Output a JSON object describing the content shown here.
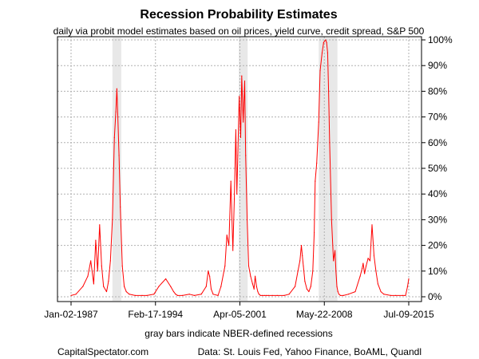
{
  "chart_data": {
    "type": "line",
    "title": "Recession Probability Estimates",
    "subtitle": "daily via probit model estimates based on oil prices, yield curve, credit spread, S&P 500",
    "xlabel": "gray bars indicate NBER-defined recessions",
    "x_tick_labels": [
      "Jan-02-1987",
      "Feb-17-1994",
      "Apr-05-2001",
      "May-22-2008",
      "Jul-09-2015"
    ],
    "x_range": [
      "1987-01-02",
      "2015-07-09"
    ],
    "y_tick_labels": [
      "0%",
      "10%",
      "20%",
      "30%",
      "40%",
      "50%",
      "60%",
      "70%",
      "80%",
      "90%",
      "100%"
    ],
    "ylim": [
      0,
      100
    ],
    "y_axis_side": "right",
    "grid": true,
    "series_color": "#ff0000",
    "recession_color": "#e8e8e8",
    "recessions": [
      {
        "start": "1990-07-01",
        "end": "1991-03-31"
      },
      {
        "start": "2001-03-01",
        "end": "2001-11-30"
      },
      {
        "start": "2007-12-01",
        "end": "2009-06-30"
      }
    ],
    "series": [
      {
        "x": [
          "1987-01-02",
          "1987-06-01",
          "1988-01-01",
          "1988-06-01",
          "1988-09-01",
          "1988-12-01",
          "1989-02-01",
          "1989-04-01",
          "1989-06-01",
          "1989-08-01",
          "1989-10-01",
          "1990-01-01",
          "1990-03-01",
          "1990-05-01",
          "1990-07-01",
          "1990-09-01",
          "1990-10-15",
          "1990-11-15",
          "1990-12-15",
          "1991-01-20",
          "1991-03-01",
          "1991-05-01",
          "1991-07-01",
          "1991-09-01",
          "1991-12-01",
          "1992-06-01",
          "1993-01-01",
          "1993-06-01",
          "1994-01-01",
          "1994-06-01",
          "1995-01-01",
          "1995-06-01",
          "1995-09-01",
          "1995-11-01",
          "1996-01-01",
          "1996-06-01",
          "1997-01-01",
          "1997-06-01",
          "1998-01-01",
          "1998-06-01",
          "1998-08-01",
          "1998-09-15",
          "1998-11-01",
          "1999-01-01",
          "1999-06-01",
          "1999-09-01",
          "2000-01-01",
          "2000-03-01",
          "2000-05-01",
          "2000-07-01",
          "2000-09-01",
          "2000-10-15",
          "2000-12-01",
          "2001-01-01",
          "2001-02-01",
          "2001-03-15",
          "2001-05-01",
          "2001-06-01",
          "2001-07-15",
          "2001-09-01",
          "2001-10-01",
          "2001-11-15",
          "2002-01-01",
          "2002-03-01",
          "2002-05-01",
          "2002-06-15",
          "2002-07-20",
          "2002-09-01",
          "2002-10-10",
          "2002-11-15",
          "2003-01-01",
          "2003-03-01",
          "2003-05-01",
          "2003-07-01",
          "2003-09-01",
          "2004-01-01",
          "2004-06-01",
          "2005-01-01",
          "2005-06-01",
          "2005-12-01",
          "2006-03-01",
          "2006-05-01",
          "2006-06-15",
          "2006-07-15",
          "2006-08-15",
          "2006-10-01",
          "2006-12-01",
          "2007-02-01",
          "2007-04-01",
          "2007-06-01",
          "2007-07-15",
          "2007-08-15",
          "2007-10-01",
          "2007-12-01",
          "2008-01-15",
          "2008-03-15",
          "2008-05-01",
          "2008-07-01",
          "2008-08-01",
          "2008-09-01",
          "2008-10-01",
          "2008-11-01",
          "2009-01-01",
          "2009-03-01",
          "2009-04-15",
          "2009-05-15",
          "2009-06-15",
          "2009-07-15",
          "2009-08-15",
          "2009-10-01",
          "2010-01-01",
          "2010-06-01",
          "2011-01-01",
          "2011-06-01",
          "2011-08-01",
          "2011-09-01",
          "2011-10-15",
          "2011-12-01",
          "2012-02-01",
          "2012-04-01",
          "2012-06-01",
          "2012-08-01",
          "2012-10-01",
          "2012-12-01",
          "2013-03-01",
          "2013-06-01",
          "2014-01-01",
          "2014-06-01",
          "2015-01-01",
          "2015-04-01",
          "2015-06-01",
          "2015-07-09"
        ],
        "values": [
          0.5,
          1,
          4,
          8,
          14,
          5,
          22,
          10,
          28,
          12,
          4,
          2,
          6,
          14,
          30,
          62,
          72,
          81,
          70,
          55,
          35,
          12,
          4,
          2,
          1,
          0.5,
          0.5,
          0.5,
          1,
          4,
          7,
          4,
          2,
          1,
          0.5,
          0.5,
          1,
          0.5,
          1,
          4,
          10,
          8,
          3,
          1,
          0.5,
          4,
          12,
          24,
          20,
          45,
          18,
          38,
          65,
          40,
          55,
          78,
          62,
          86,
          68,
          84,
          55,
          30,
          12,
          8,
          5,
          3,
          8,
          4,
          2,
          1,
          0.5,
          0.5,
          0.5,
          0.5,
          0.5,
          0.5,
          0.5,
          0.5,
          1,
          4,
          10,
          14,
          20,
          16,
          12,
          6,
          3,
          2,
          4,
          10,
          25,
          45,
          52,
          68,
          88,
          95,
          99,
          100,
          99,
          95,
          80,
          60,
          30,
          14,
          18,
          10,
          4,
          2,
          1,
          0.5,
          0.5,
          1,
          2,
          8,
          11,
          13,
          9,
          12,
          15,
          14,
          28,
          16,
          10,
          5,
          2,
          1,
          0.5,
          0.5,
          0.5,
          0.5,
          4,
          7
        ]
      }
    ]
  },
  "footer": {
    "left": "CapitalSpectator.com",
    "right": "Data: St. Louis Fed, Yahoo Finance, BoAML, Quandl"
  }
}
